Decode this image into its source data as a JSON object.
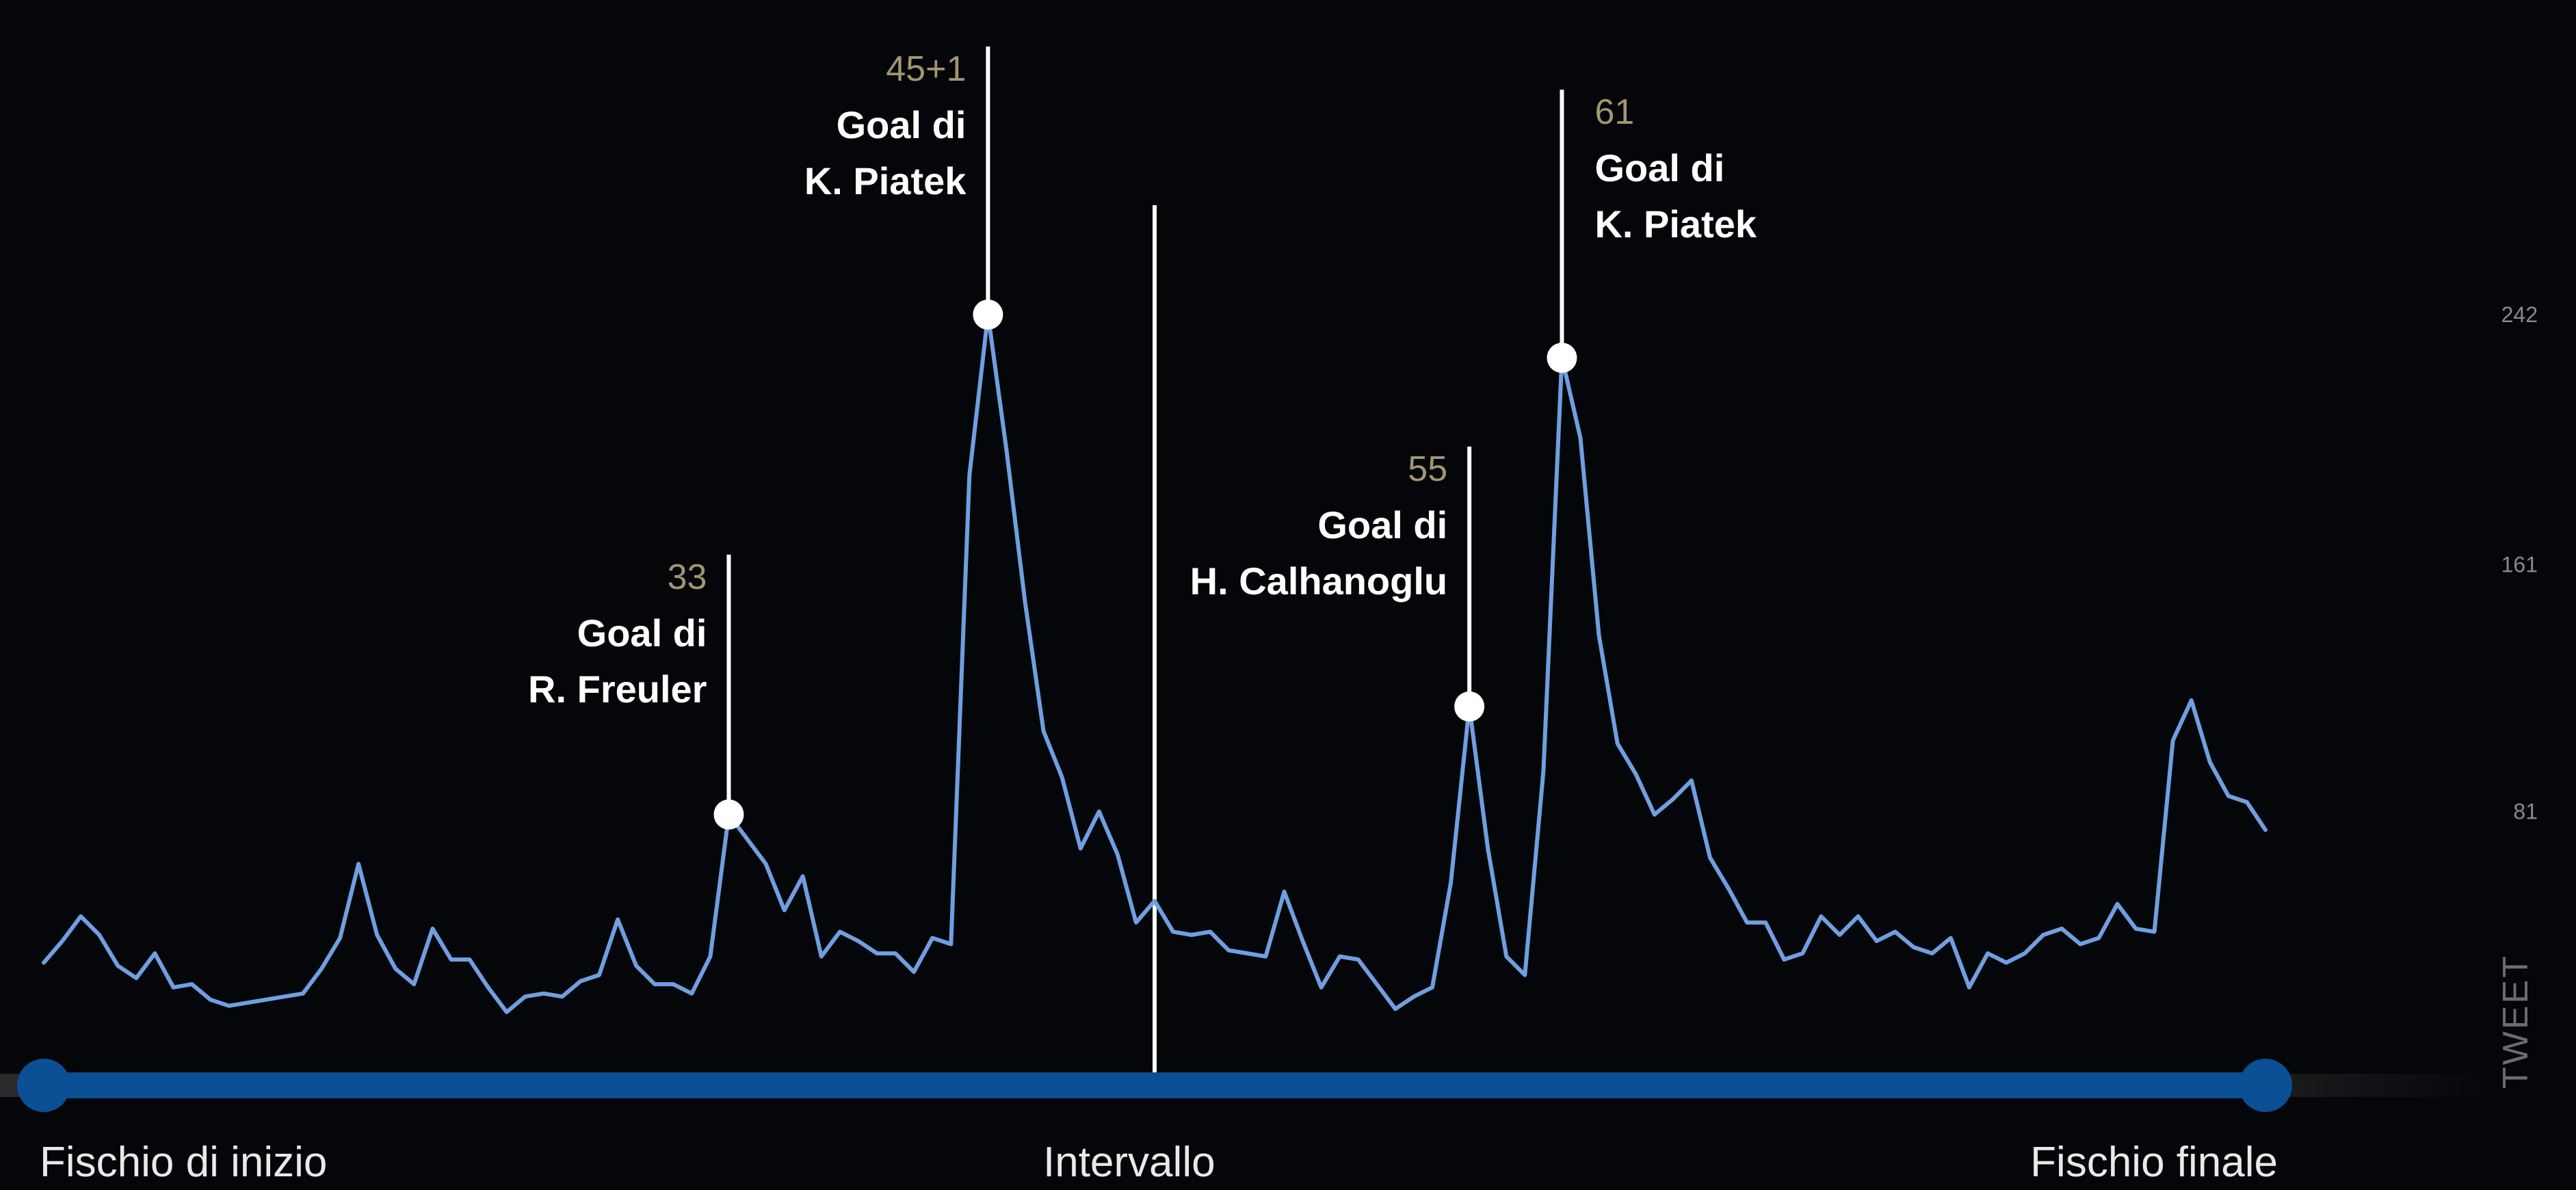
{
  "chart_data": {
    "type": "line",
    "ylabel": "TWEET",
    "ylim": [
      0,
      268
    ],
    "yticks": [
      81,
      161,
      242
    ],
    "timeline": {
      "start_label": "Fischio di inizio",
      "mid_label": "Intervallo",
      "end_label": "Fischio finale"
    },
    "minutes_total": 90,
    "halftime_minute": 45,
    "series": [
      {
        "color": "#6f9fe0",
        "values": [
          32,
          39,
          47,
          41,
          31,
          27,
          35,
          24,
          25,
          20,
          18,
          19,
          20,
          21,
          22,
          30,
          40,
          64,
          41,
          30,
          25,
          43,
          33,
          33,
          24,
          16,
          21,
          22,
          21,
          26,
          28,
          46,
          31,
          25,
          25,
          22,
          34,
          80,
          72,
          64,
          49,
          60,
          34,
          42,
          39,
          35,
          35,
          29,
          40,
          38,
          190,
          242,
          198,
          149,
          107,
          92,
          69,
          81,
          67,
          45,
          52,
          42,
          41,
          42,
          36,
          35,
          34,
          55,
          39,
          24,
          34,
          33,
          25,
          17,
          21,
          24,
          58,
          115,
          69,
          34,
          28,
          94,
          228,
          202,
          138,
          103,
          93,
          80,
          85,
          91,
          66,
          56,
          45,
          45,
          33,
          35,
          47,
          41,
          47,
          39,
          42,
          37,
          35,
          40,
          24,
          35,
          32,
          35,
          41,
          43,
          38,
          40,
          51,
          43,
          42,
          104,
          117,
          97,
          86,
          84,
          75
        ]
      }
    ],
    "goals": [
      {
        "minute": "33",
        "text": "Goal di",
        "player": "R. Freuler",
        "index": 37,
        "side": "left"
      },
      {
        "minute": "45+1",
        "text": "Goal di",
        "player": "K. Piatek",
        "index": 51,
        "side": "left"
      },
      {
        "minute": "55",
        "text": "Goal di",
        "player": "H. Calhanoglu",
        "index": 77,
        "side": "left"
      },
      {
        "minute": "61",
        "text": "Goal di",
        "player": "K. Piatek",
        "index": 82,
        "side": "right"
      }
    ]
  },
  "colors": {
    "background": "#04060a",
    "line": "#6f9fe0",
    "timeline": "#0b4f94",
    "minute_label": "#a39670"
  }
}
